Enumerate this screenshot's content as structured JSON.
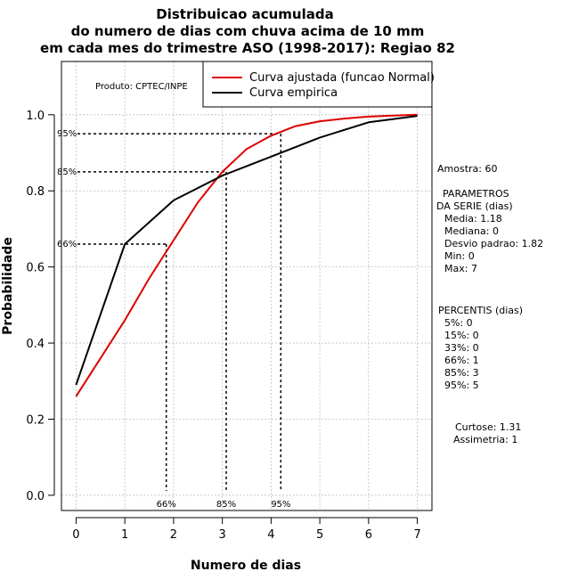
{
  "chart_data": {
    "type": "line",
    "title_lines": [
      "Distribuicao acumulada",
      "do numero de dias com chuva acima de 10 mm",
      "em cada mes do trimestre ASO (1998-2017): Regiao 82"
    ],
    "xlabel": "Numero de dias",
    "ylabel": "Probabilidade",
    "xlim": [
      -0.3,
      7.3
    ],
    "ylim": [
      -0.04,
      1.14
    ],
    "x_ticks": [
      0,
      1,
      2,
      3,
      4,
      5,
      6,
      7
    ],
    "y_ticks": [
      0.0,
      0.2,
      0.4,
      0.6,
      0.8,
      1.0
    ],
    "y_tick_labels": [
      "0.0",
      "0.2",
      "0.4",
      "0.6",
      "0.8",
      "1.0"
    ],
    "grid": true,
    "legend_position": "top-right",
    "credit": "Produto: CPTEC/INPE",
    "series": [
      {
        "name": "Curva ajustada (funcao Normal)",
        "color": "#dd0000",
        "x": [
          0,
          0.5,
          1,
          1.5,
          2,
          2.5,
          3,
          3.5,
          4,
          4.5,
          5,
          5.5,
          6,
          6.5,
          7
        ],
        "y": [
          0.26,
          0.36,
          0.46,
          0.57,
          0.67,
          0.77,
          0.85,
          0.91,
          0.945,
          0.97,
          0.983,
          0.99,
          0.995,
          0.998,
          1.0
        ]
      },
      {
        "name": "Curva empirica",
        "color": "#000000",
        "x": [
          0,
          1,
          2,
          3,
          4,
          5,
          6,
          7
        ],
        "y": [
          0.29,
          0.66,
          0.775,
          0.84,
          0.89,
          0.94,
          0.98,
          0.997
        ]
      }
    ],
    "percentile_markers": [
      {
        "label_y": "66%",
        "label_x": "66%",
        "prob": 0.66,
        "x": 1.85
      },
      {
        "label_y": "85%",
        "label_x": "85%",
        "prob": 0.85,
        "x": 3.08
      },
      {
        "label_y": "95%",
        "label_x": "95%",
        "prob": 0.95,
        "x": 4.2
      }
    ]
  },
  "stats_panel": {
    "amostra": "Amostra: 60",
    "parametros_title_1": "PARAMETROS",
    "parametros_title_2": "DA SERIE (dias)",
    "media": "Media: 1.18",
    "mediana": "Mediana: 0",
    "desvio": "Desvio padrao: 1.82",
    "min": "Min: 0",
    "max": "Max: 7",
    "percentis_title": "PERCENTIS (dias)",
    "p5": "5%: 0",
    "p15": "15%: 0",
    "p33": "33%: 0",
    "p66": "66%: 1",
    "p85": "85%: 3",
    "p95": "95%: 5",
    "curtose": "Curtose: 1.31",
    "assimetria": "Assimetria: 1"
  }
}
